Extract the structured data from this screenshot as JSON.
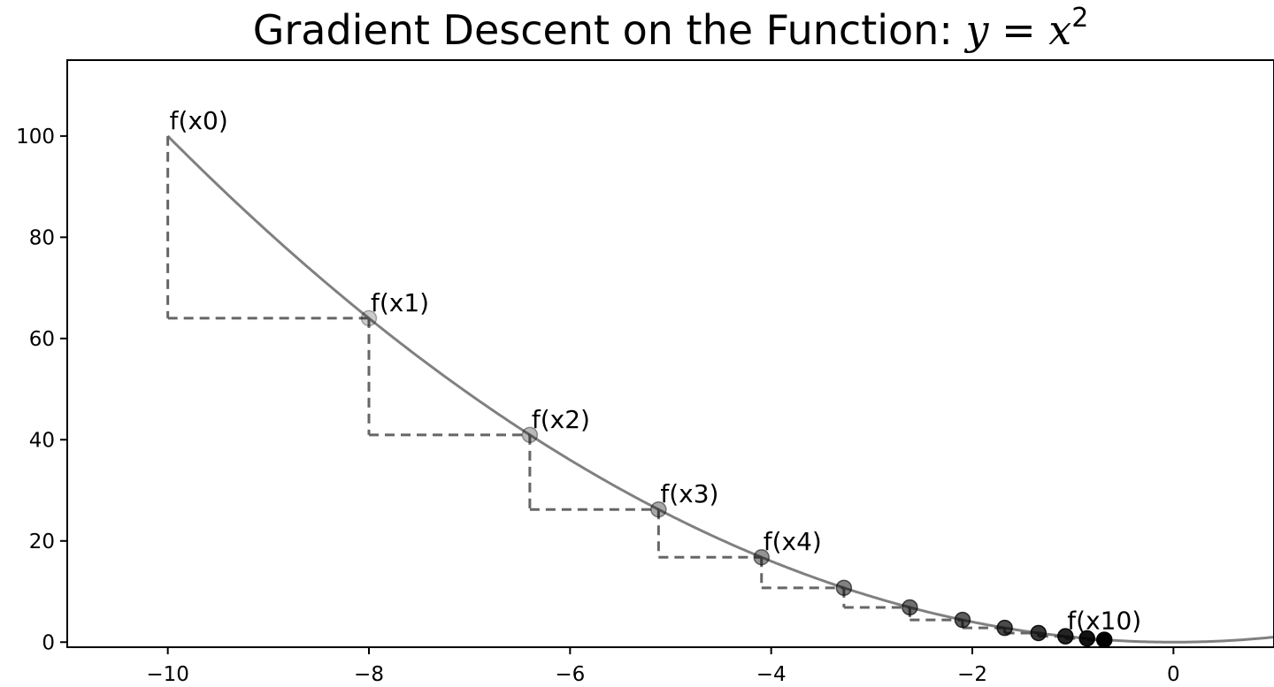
{
  "chart_data": {
    "type": "line",
    "title": {
      "prefix": "Gradient Descent on the Function: ",
      "math_lhs": "y",
      "math_eq": " = ",
      "math_rhs": "x",
      "math_exp": "2"
    },
    "xlabel": "",
    "ylabel": "",
    "xlim": [
      -11,
      1
    ],
    "ylim": [
      -1,
      115
    ],
    "x_ticks": [
      -10,
      -8,
      -6,
      -4,
      -2,
      0
    ],
    "x_tick_labels": [
      "−10",
      "−8",
      "−6",
      "−4",
      "−2",
      "0"
    ],
    "y_ticks": [
      0,
      20,
      40,
      60,
      80,
      100
    ],
    "y_tick_labels": [
      "0",
      "20",
      "40",
      "60",
      "80",
      "100"
    ],
    "grid": false,
    "legend": "none",
    "function": "x^2",
    "curve_color": "#808080",
    "step_color": "#666666",
    "point_color": "#000000",
    "steps": {
      "x": [
        -10,
        -8,
        -6.4,
        -5.12,
        -4.096,
        -3.2768,
        -2.62144,
        -2.097152,
        -1.6777216,
        -1.34217728,
        -1.073741824,
        -0.8589934592,
        -0.68719476736
      ],
      "y": [
        100,
        64,
        40.96,
        26.2144,
        16.777216,
        10.73741824,
        6.8719476736,
        4.398046511104,
        2.81474976710656,
        1.8014398509481984,
        1.152921504606847,
        0.7378697629483821,
        0.4722366482869645
      ]
    },
    "annotations": [
      {
        "label": "f(x0)",
        "index": 0
      },
      {
        "label": "f(x1)",
        "index": 1
      },
      {
        "label": "f(x2)",
        "index": 2
      },
      {
        "label": "f(x3)",
        "index": 3
      },
      {
        "label": "f(x4)",
        "index": 4
      },
      {
        "label": "f(x10)",
        "index": 10
      }
    ]
  }
}
